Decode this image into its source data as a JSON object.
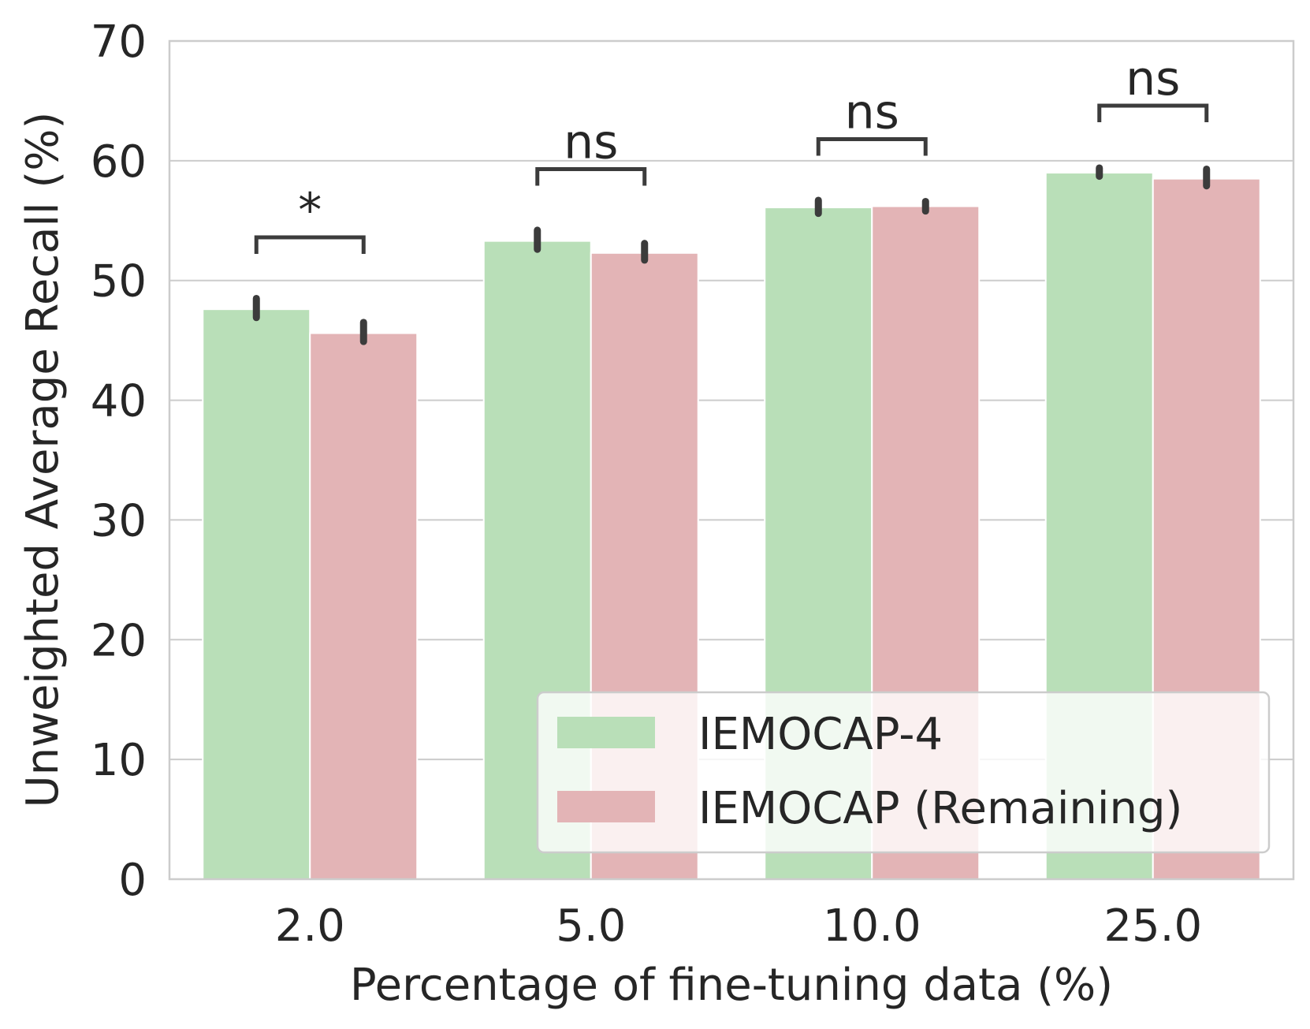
{
  "chart_data": {
    "type": "bar",
    "title": "",
    "xlabel": "Percentage of fine-tuning data (%)",
    "ylabel": "Unweighted Average Recall (%)",
    "categories": [
      "2.0",
      "5.0",
      "10.0",
      "25.0"
    ],
    "ylim": [
      0,
      70
    ],
    "yticks": [
      0,
      10,
      20,
      30,
      40,
      50,
      60,
      70
    ],
    "grid": true,
    "legend_position": "bottom-right",
    "series": [
      {
        "name": "IEMOCAP-4",
        "color": "#b9dfb8",
        "values": [
          47.6,
          53.3,
          56.1,
          59.0
        ],
        "error_low": [
          46.9,
          52.6,
          55.6,
          58.7
        ],
        "error_high": [
          48.5,
          54.2,
          56.7,
          59.4
        ]
      },
      {
        "name": "IEMOCAP (Remaining)",
        "color": "#e3b4b6",
        "values": [
          45.6,
          52.3,
          56.2,
          58.5
        ],
        "error_low": [
          44.9,
          51.7,
          55.8,
          57.9
        ],
        "error_high": [
          46.5,
          53.1,
          56.6,
          59.3
        ]
      }
    ],
    "significance": [
      {
        "category": "2.0",
        "label": "*",
        "y": 53.6
      },
      {
        "category": "5.0",
        "label": "ns",
        "y": 59.3
      },
      {
        "category": "10.0",
        "label": "ns",
        "y": 61.8
      },
      {
        "category": "25.0",
        "label": "ns",
        "y": 64.6
      }
    ]
  }
}
